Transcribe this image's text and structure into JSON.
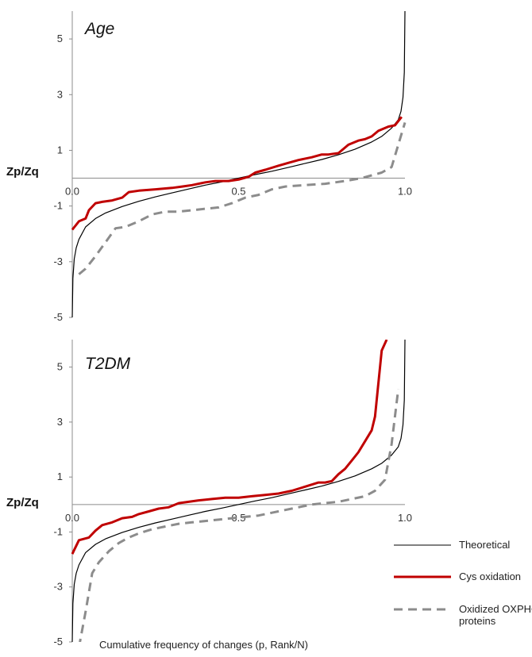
{
  "colors": {
    "theoretical": "#000000",
    "cys": "#c00000",
    "oxphos": "#8c8c8c",
    "axis": "#8c8c8c"
  },
  "chart_data": [
    {
      "type": "line",
      "title": "Age",
      "ylabel": "Zp/Zq",
      "xlabel": "",
      "xlim": [
        0,
        1
      ],
      "ylim": [
        -5,
        6
      ],
      "xticks": [
        "0.0",
        "0.5",
        "1.0"
      ],
      "yticks": [
        "-5",
        "-3",
        "-1",
        "1",
        "3",
        "5"
      ],
      "series": [
        {
          "name": "Theoretical",
          "style": "thin-solid",
          "x": [
            0,
            0.002,
            0.006,
            0.012,
            0.02,
            0.04,
            0.07,
            0.1,
            0.15,
            0.2,
            0.25,
            0.3,
            0.35,
            0.4,
            0.45,
            0.5,
            0.55,
            0.6,
            0.65,
            0.7,
            0.75,
            0.8,
            0.85,
            0.9,
            0.93,
            0.96,
            0.98,
            0.988,
            0.994,
            0.998,
            1.0
          ],
          "y": [
            -5,
            -3.6,
            -2.9,
            -2.5,
            -2.2,
            -1.75,
            -1.45,
            -1.25,
            -1.02,
            -0.83,
            -0.67,
            -0.53,
            -0.39,
            -0.25,
            -0.13,
            0,
            0.13,
            0.25,
            0.39,
            0.53,
            0.67,
            0.84,
            1.04,
            1.3,
            1.5,
            1.8,
            2.1,
            2.4,
            2.9,
            3.8,
            6
          ]
        },
        {
          "name": "Cys oxidation",
          "style": "thick-solid",
          "x": [
            0.0,
            0.02,
            0.04,
            0.05,
            0.07,
            0.09,
            0.12,
            0.15,
            0.17,
            0.2,
            0.25,
            0.3,
            0.33,
            0.36,
            0.4,
            0.43,
            0.47,
            0.5,
            0.53,
            0.55,
            0.58,
            0.62,
            0.65,
            0.68,
            0.72,
            0.75,
            0.77,
            0.8,
            0.83,
            0.86,
            0.88,
            0.9,
            0.92,
            0.95,
            0.97,
            0.99
          ],
          "y": [
            -1.85,
            -1.55,
            -1.45,
            -1.15,
            -0.9,
            -0.85,
            -0.8,
            -0.7,
            -0.5,
            -0.45,
            -0.4,
            -0.35,
            -0.3,
            -0.25,
            -0.15,
            -0.1,
            -0.1,
            -0.05,
            0.05,
            0.2,
            0.3,
            0.45,
            0.55,
            0.65,
            0.75,
            0.85,
            0.85,
            0.9,
            1.2,
            1.35,
            1.4,
            1.5,
            1.7,
            1.85,
            1.9,
            2.2
          ]
        },
        {
          "name": "Oxidized OXPHOS proteins",
          "style": "dashed",
          "x": [
            0.02,
            0.04,
            0.07,
            0.1,
            0.13,
            0.16,
            0.2,
            0.24,
            0.28,
            0.32,
            0.36,
            0.4,
            0.44,
            0.48,
            0.52,
            0.56,
            0.6,
            0.64,
            0.7,
            0.76,
            0.82,
            0.87,
            0.9,
            0.93,
            0.96,
            0.98,
            1.0
          ],
          "y": [
            -3.45,
            -3.25,
            -2.8,
            -2.3,
            -1.8,
            -1.75,
            -1.55,
            -1.3,
            -1.2,
            -1.2,
            -1.15,
            -1.1,
            -1.05,
            -0.9,
            -0.7,
            -0.6,
            -0.4,
            -0.3,
            -0.25,
            -0.2,
            -0.1,
            0,
            0.1,
            0.2,
            0.4,
            1.2,
            2.0
          ]
        }
      ]
    },
    {
      "type": "line",
      "title": "T2DM",
      "ylabel": "Zp/Zq",
      "xlabel": "Cumulative  frequency of changes (p, Rank/N)",
      "xlim": [
        0,
        1
      ],
      "ylim": [
        -5,
        6
      ],
      "xticks": [
        "0.0",
        "0.5",
        "1.0"
      ],
      "yticks": [
        "-5",
        "-3",
        "-1",
        "1",
        "3",
        "5"
      ],
      "legend_position": "right",
      "series": [
        {
          "name": "Theoretical",
          "style": "thin-solid",
          "x": [
            0,
            0.002,
            0.006,
            0.012,
            0.02,
            0.04,
            0.07,
            0.1,
            0.15,
            0.2,
            0.25,
            0.3,
            0.35,
            0.4,
            0.45,
            0.5,
            0.55,
            0.6,
            0.65,
            0.7,
            0.75,
            0.8,
            0.85,
            0.9,
            0.93,
            0.96,
            0.98,
            0.988,
            0.994,
            0.998,
            1.0
          ],
          "y": [
            -5,
            -3.6,
            -2.9,
            -2.5,
            -2.2,
            -1.75,
            -1.45,
            -1.25,
            -1.02,
            -0.83,
            -0.67,
            -0.53,
            -0.39,
            -0.25,
            -0.13,
            0,
            0.13,
            0.25,
            0.39,
            0.53,
            0.67,
            0.84,
            1.04,
            1.3,
            1.5,
            1.8,
            2.1,
            2.4,
            2.9,
            3.8,
            6
          ]
        },
        {
          "name": "Cys oxidation",
          "style": "thick-solid",
          "x": [
            0.0,
            0.02,
            0.05,
            0.07,
            0.09,
            0.12,
            0.15,
            0.18,
            0.2,
            0.23,
            0.26,
            0.29,
            0.32,
            0.35,
            0.38,
            0.42,
            0.46,
            0.5,
            0.54,
            0.58,
            0.62,
            0.66,
            0.7,
            0.74,
            0.76,
            0.78,
            0.8,
            0.82,
            0.84,
            0.86,
            0.88,
            0.9,
            0.91,
            0.93,
            0.945
          ],
          "y": [
            -1.8,
            -1.3,
            -1.2,
            -0.95,
            -0.75,
            -0.65,
            -0.5,
            -0.45,
            -0.35,
            -0.25,
            -0.15,
            -0.1,
            0.05,
            0.1,
            0.15,
            0.2,
            0.25,
            0.25,
            0.3,
            0.35,
            0.4,
            0.5,
            0.65,
            0.8,
            0.8,
            0.85,
            1.1,
            1.3,
            1.6,
            1.9,
            2.3,
            2.7,
            3.2,
            5.6,
            6.0
          ]
        },
        {
          "name": "Oxidized OXPHOS proteins",
          "style": "dashed",
          "x": [
            0.02,
            0.04,
            0.06,
            0.08,
            0.11,
            0.14,
            0.17,
            0.2,
            0.24,
            0.28,
            0.32,
            0.36,
            0.4,
            0.44,
            0.48,
            0.52,
            0.56,
            0.6,
            0.64,
            0.68,
            0.72,
            0.76,
            0.8,
            0.84,
            0.88,
            0.91,
            0.94,
            0.96,
            0.98
          ],
          "y": [
            -5.2,
            -3.9,
            -2.5,
            -2.1,
            -1.7,
            -1.4,
            -1.2,
            -1.05,
            -0.9,
            -0.8,
            -0.7,
            -0.65,
            -0.6,
            -0.55,
            -0.5,
            -0.45,
            -0.4,
            -0.3,
            -0.2,
            -0.1,
            0,
            0.05,
            0.1,
            0.2,
            0.3,
            0.5,
            0.9,
            2.2,
            4.2
          ]
        }
      ]
    }
  ]
}
